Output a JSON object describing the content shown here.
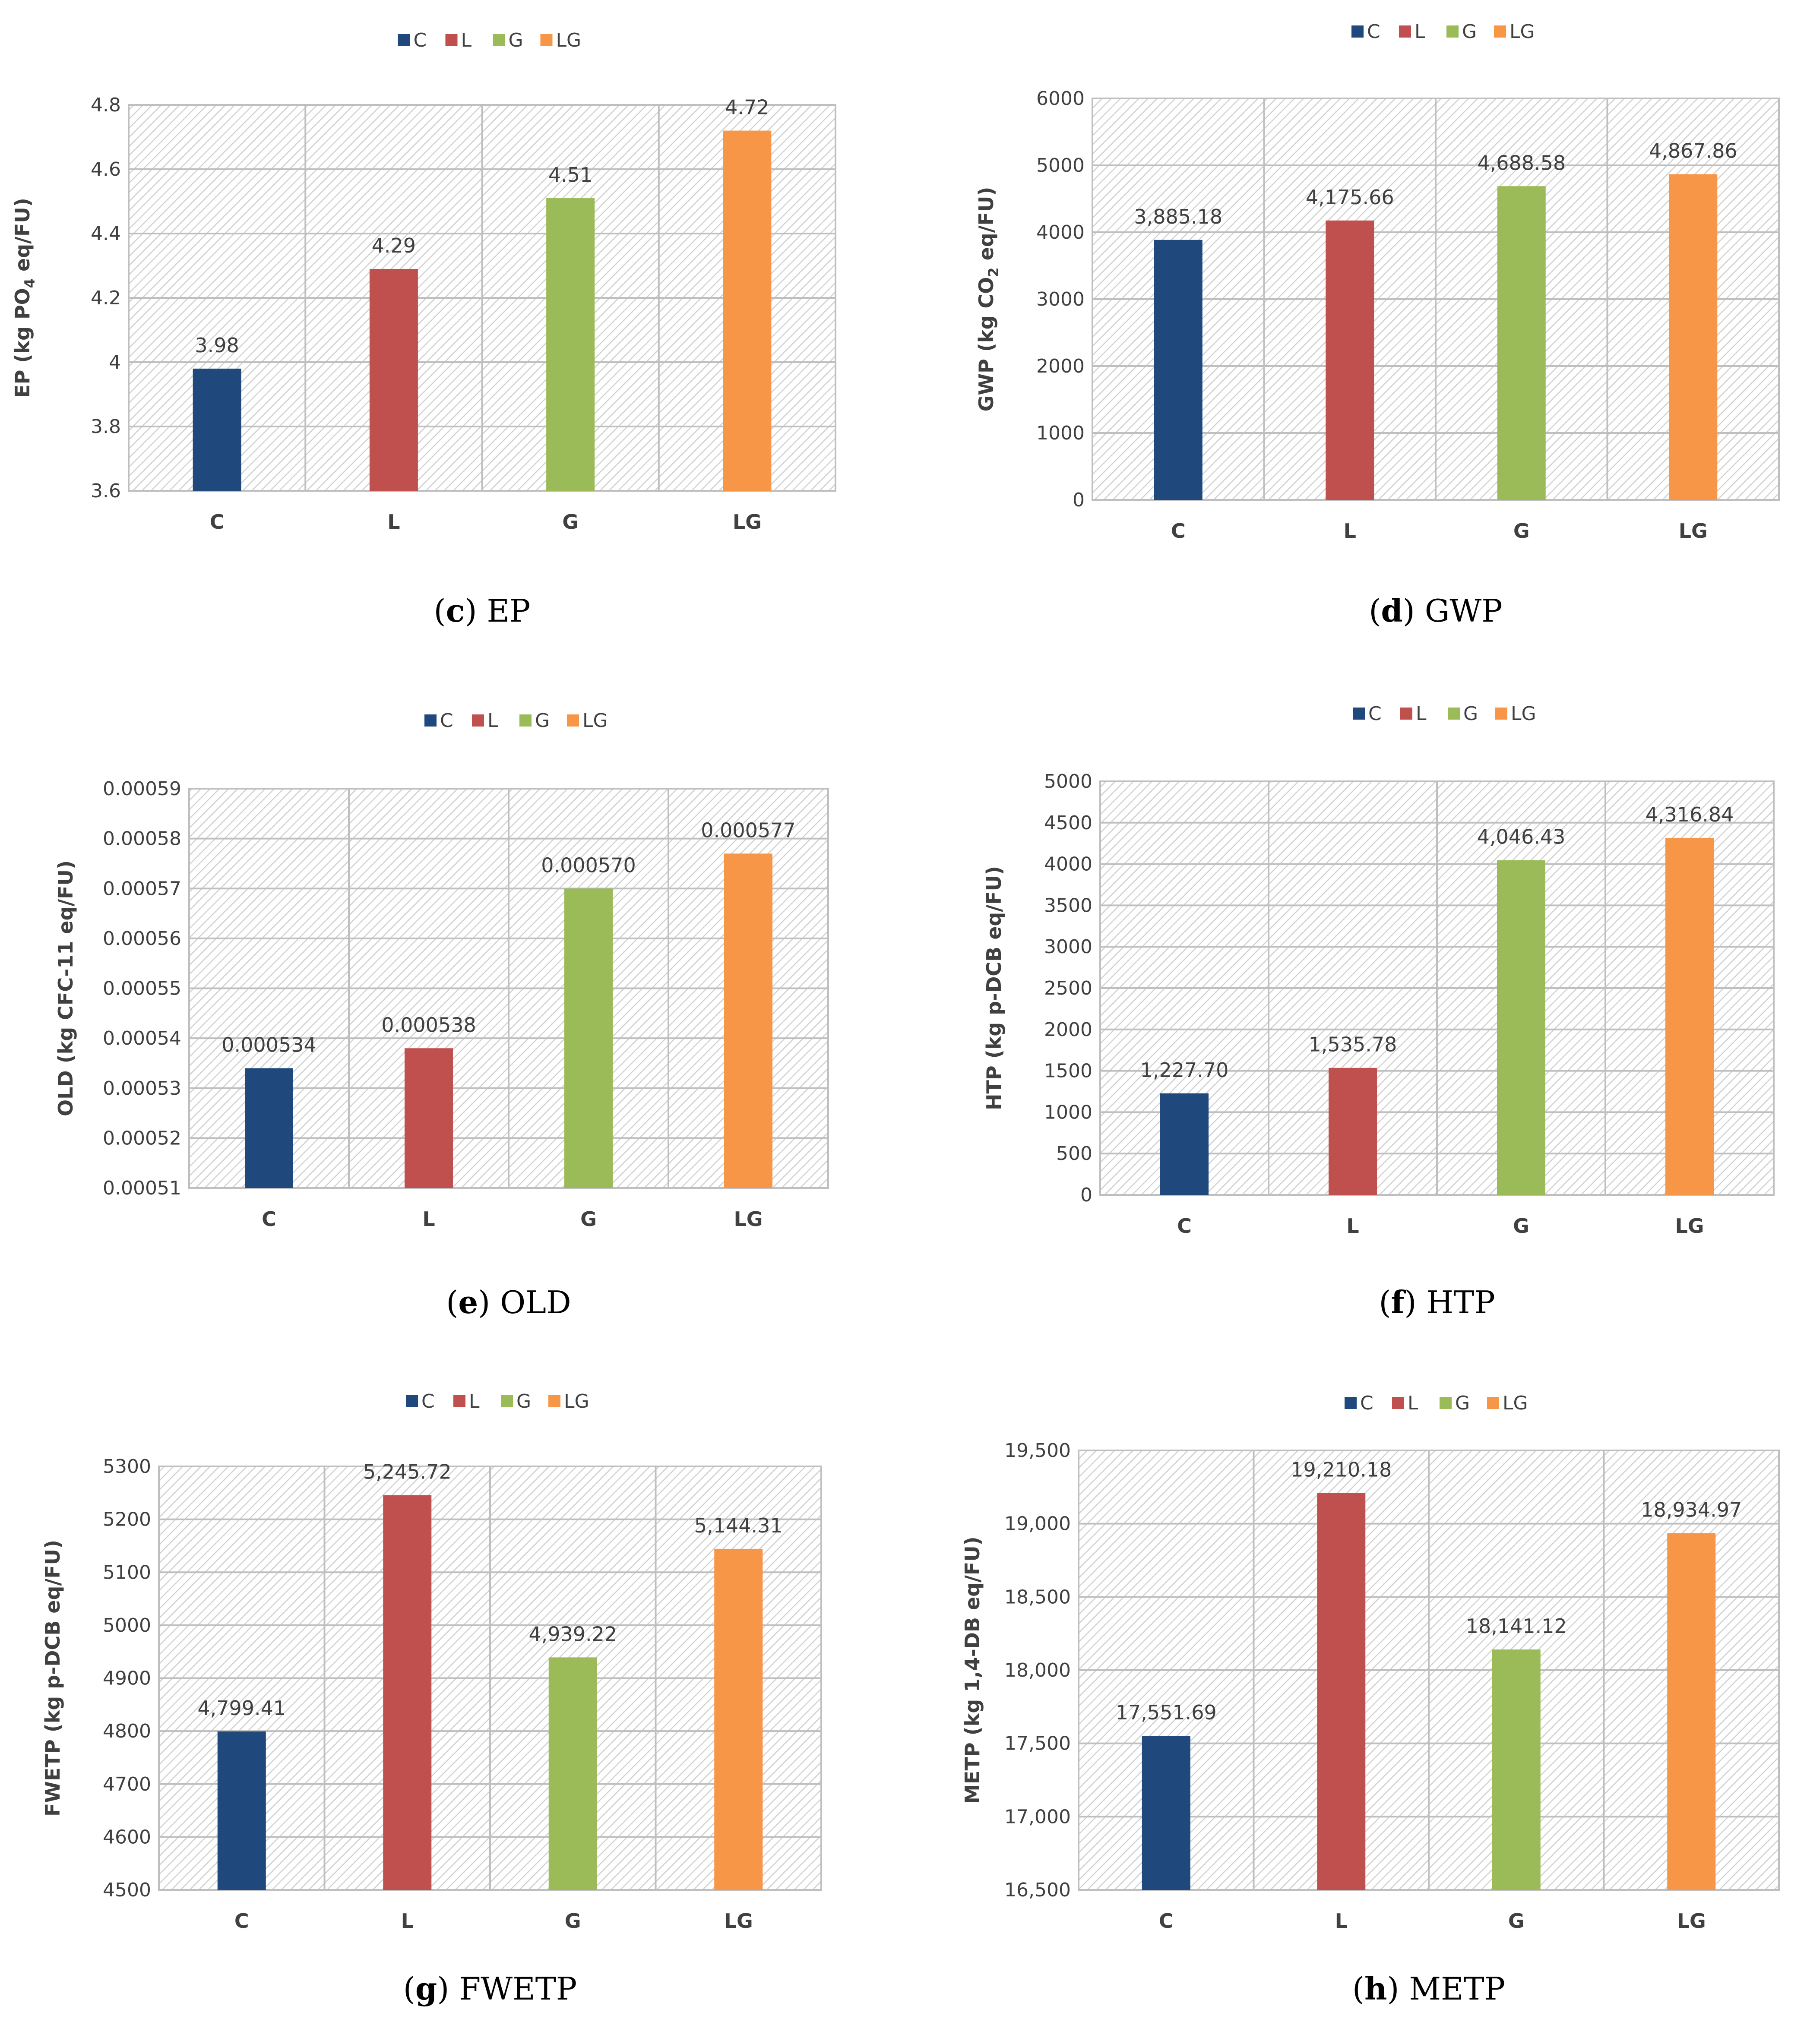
{
  "palette": {
    "C": "#1F497D",
    "L": "#C0504D",
    "G": "#9BBB59",
    "LG": "#F79646",
    "grid": "#BFBFBF",
    "hatch": "#D0D0D0",
    "text": "#404040"
  },
  "legend_labels": [
    "C",
    "L",
    "G",
    "LG"
  ],
  "chart_data": [
    {
      "id": "ep",
      "type": "bar",
      "caption_letter": "c",
      "caption_text": " EP",
      "ylabel_main": "EP (kg PO",
      "ylabel_sub": "4",
      "ylabel_end": " eq/FU)",
      "categories": [
        "C",
        "L",
        "G",
        "LG"
      ],
      "values": [
        3.98,
        4.29,
        4.51,
        4.72
      ],
      "data_labels": [
        "3.98",
        "4.29",
        "4.51",
        "4.72"
      ],
      "ylim": [
        3.6,
        4.8
      ],
      "yticks": [
        3.6,
        3.8,
        4,
        4.2,
        4.4,
        4.6,
        4.8
      ],
      "ytick_labels": [
        "3.6",
        "3.8",
        "4",
        "4.2",
        "4.4",
        "4.6",
        "4.8"
      ],
      "grid": true,
      "legend": "top"
    },
    {
      "id": "gwp",
      "type": "bar",
      "caption_letter": "d",
      "caption_text": " GWP",
      "ylabel_main": "GWP (kg CO",
      "ylabel_sub": "2",
      "ylabel_end": " eq/FU)",
      "categories": [
        "C",
        "L",
        "G",
        "LG"
      ],
      "values": [
        3885.18,
        4175.66,
        4688.58,
        4867.86
      ],
      "data_labels": [
        "3,885.18",
        "4,175.66",
        "4,688.58",
        "4,867.86"
      ],
      "ylim": [
        0,
        6000
      ],
      "yticks": [
        0,
        1000,
        2000,
        3000,
        4000,
        5000,
        6000
      ],
      "ytick_labels": [
        "0",
        "1000",
        "2000",
        "3000",
        "4000",
        "5000",
        "6000"
      ],
      "grid": true,
      "legend": "top"
    },
    {
      "id": "old",
      "type": "bar",
      "caption_letter": "e",
      "caption_text": " OLD",
      "ylabel_main": "OLD (kg CFC-11 eq/FU)",
      "ylabel_sub": "",
      "ylabel_end": "",
      "categories": [
        "C",
        "L",
        "G",
        "LG"
      ],
      "values": [
        0.000534,
        0.000538,
        0.00057,
        0.000577
      ],
      "data_labels": [
        "0.000534",
        "0.000538",
        "0.000570",
        "0.000577"
      ],
      "ylim": [
        0.00051,
        0.00059
      ],
      "yticks": [
        0.00051,
        0.00052,
        0.00053,
        0.00054,
        0.00055,
        0.00056,
        0.00057,
        0.00058,
        0.00059
      ],
      "ytick_labels": [
        "0.00051",
        "0.00052",
        "0.00053",
        "0.00054",
        "0.00055",
        "0.00056",
        "0.00057",
        "0.00058",
        "0.00059"
      ],
      "grid": true,
      "legend": "top"
    },
    {
      "id": "htp",
      "type": "bar",
      "caption_letter": "f",
      "caption_text": " HTP",
      "ylabel_main": "HTP (kg p-DCB eq/FU)",
      "ylabel_sub": "",
      "ylabel_end": "",
      "categories": [
        "C",
        "L",
        "G",
        "LG"
      ],
      "values": [
        1227.7,
        1535.78,
        4046.43,
        4316.84
      ],
      "data_labels": [
        "1,227.70",
        "1,535.78",
        "4,046.43",
        "4,316.84"
      ],
      "ylim": [
        0,
        5000
      ],
      "yticks": [
        0,
        500,
        1000,
        1500,
        2000,
        2500,
        3000,
        3500,
        4000,
        4500,
        5000
      ],
      "ytick_labels": [
        "0",
        "500",
        "1000",
        "1500",
        "2000",
        "2500",
        "3000",
        "3500",
        "4000",
        "4500",
        "5000"
      ],
      "grid": true,
      "legend": "top"
    },
    {
      "id": "fwetp",
      "type": "bar",
      "caption_letter": "g",
      "caption_text": " FWETP",
      "ylabel_main": "FWETP (kg p-DCB eq/FU)",
      "ylabel_sub": "",
      "ylabel_end": "",
      "categories": [
        "C",
        "L",
        "G",
        "LG"
      ],
      "values": [
        4799.41,
        5245.72,
        4939.22,
        5144.31
      ],
      "data_labels": [
        "4,799.41",
        "5,245.72",
        "4,939.22",
        "5,144.31"
      ],
      "ylim": [
        4500,
        5300
      ],
      "yticks": [
        4500,
        4600,
        4700,
        4800,
        4900,
        5000,
        5100,
        5200,
        5300
      ],
      "ytick_labels": [
        "4500",
        "4600",
        "4700",
        "4800",
        "4900",
        "5000",
        "5100",
        "5200",
        "5300"
      ],
      "grid": true,
      "legend": "top"
    },
    {
      "id": "metp",
      "type": "bar",
      "caption_letter": "h",
      "caption_text": " METP",
      "ylabel_main": "METP (kg 1,4-DB eq/FU)",
      "ylabel_sub": "",
      "ylabel_end": "",
      "categories": [
        "C",
        "L",
        "G",
        "LG"
      ],
      "values": [
        17551.69,
        19210.18,
        18141.12,
        18934.97
      ],
      "data_labels": [
        "17,551.69",
        "19,210.18",
        "18,141.12",
        "18,934.97"
      ],
      "ylim": [
        16500,
        19500
      ],
      "yticks": [
        16500,
        17000,
        17500,
        18000,
        18500,
        19000,
        19500
      ],
      "ytick_labels": [
        "16,500",
        "17,000",
        "17,500",
        "18,000",
        "18,500",
        "19,000",
        "19,500"
      ],
      "grid": true,
      "legend": "top"
    }
  ]
}
